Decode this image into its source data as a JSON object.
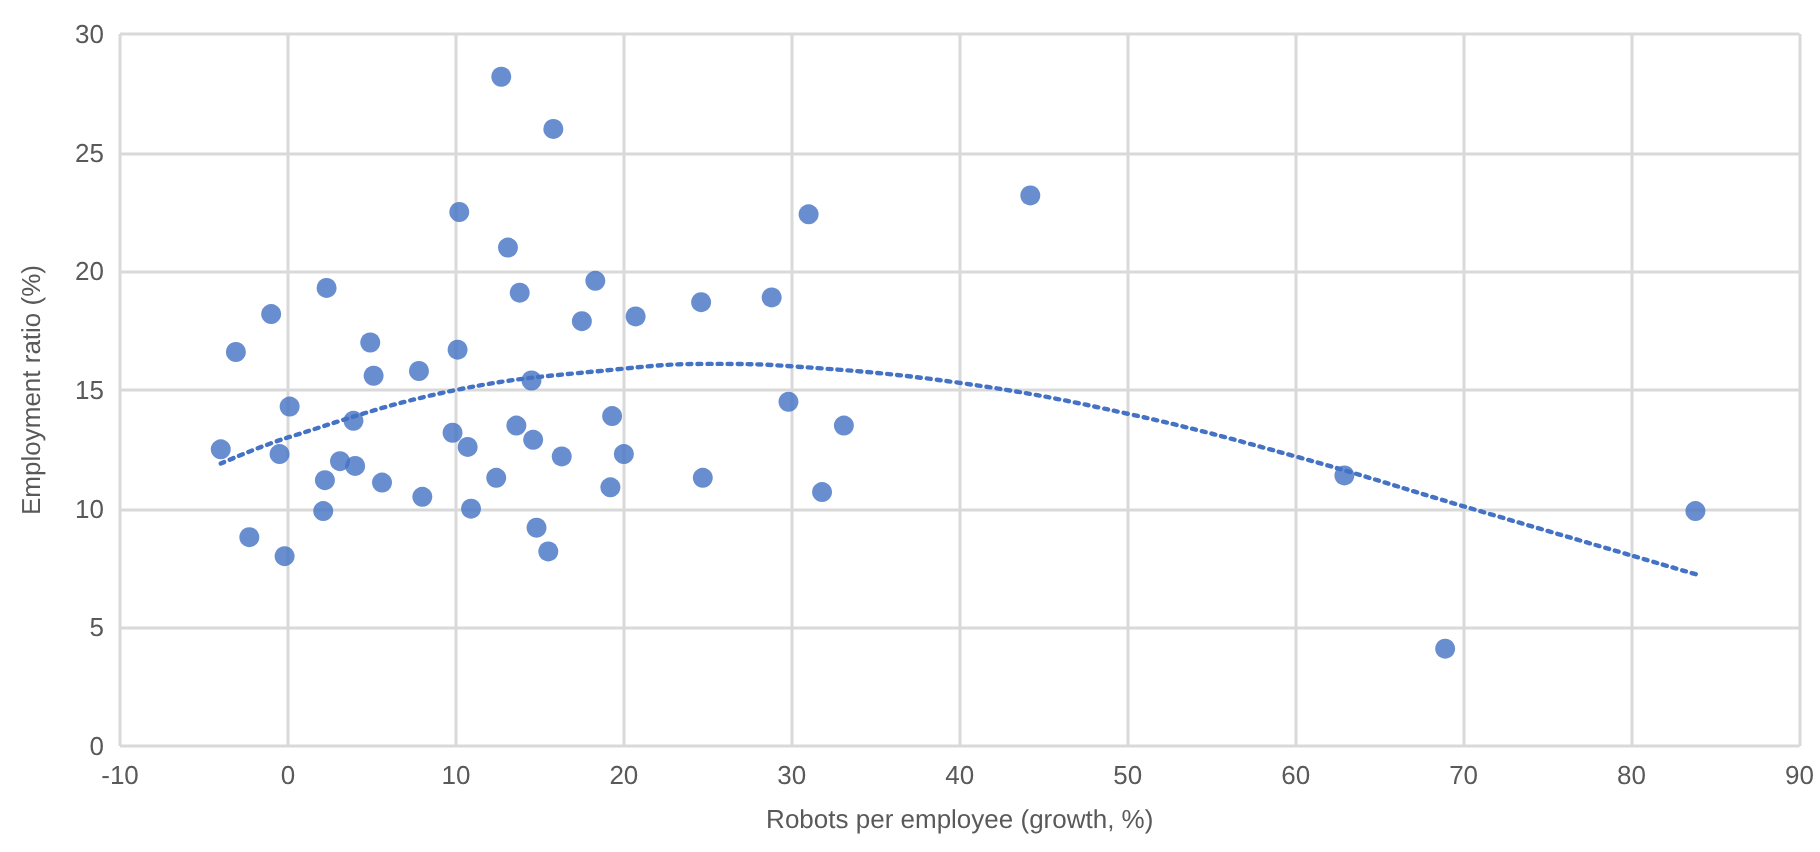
{
  "chart_data": {
    "type": "scatter",
    "xlabel": "Robots per employee (growth, %)",
    "ylabel": "Employment ratio (%)",
    "xlim": [
      -10,
      90
    ],
    "xticks": [
      -10,
      0,
      10,
      20,
      30,
      40,
      50,
      60,
      70,
      80,
      90
    ],
    "ylim": [
      0,
      30
    ],
    "yticks": [
      0,
      5,
      10,
      15,
      20,
      25,
      30
    ],
    "grid": true,
    "marker": "circle",
    "series": [
      {
        "color": "#4472c4",
        "x": [
          -4,
          -3.1,
          -2.3,
          -1.0,
          -0.5,
          -0.2,
          0.1,
          2.1,
          2.2,
          2.3,
          3.1,
          3.9,
          4.0,
          4.9,
          5.1,
          5.6,
          7.8,
          8.0,
          9.8,
          10.2,
          10.1,
          10.7,
          10.9,
          12.4,
          12.7,
          13.1,
          13.6,
          13.8,
          14.5,
          14.6,
          14.8,
          15.5,
          15.8,
          16.3,
          17.5,
          18.3,
          19.2,
          19.3,
          20.0,
          20.7,
          24.6,
          24.7,
          28.8,
          29.8,
          31.0,
          31.8,
          33.1,
          44.2,
          62.9,
          68.9,
          83.8
        ],
        "values": [
          12.5,
          16.6,
          8.8,
          18.2,
          12.3,
          8.0,
          14.3,
          9.9,
          11.2,
          19.3,
          12.0,
          13.7,
          11.8,
          17.0,
          15.6,
          11.1,
          15.8,
          10.5,
          13.2,
          22.5,
          16.7,
          12.6,
          10.0,
          11.3,
          28.2,
          21.0,
          13.5,
          19.1,
          15.4,
          12.9,
          9.2,
          8.2,
          26.0,
          12.2,
          17.9,
          19.6,
          10.9,
          13.9,
          12.3,
          18.1,
          18.7,
          11.3,
          18.9,
          14.5,
          22.4,
          10.7,
          13.5,
          23.2,
          11.4,
          4.1,
          9.9
        ]
      },
      {
        "type": "line",
        "color": "#4472c4",
        "line_style": "dotted",
        "marker": "none",
        "x": [
          -4,
          0,
          10,
          20,
          25,
          30,
          40,
          50,
          60,
          70,
          84
        ],
        "values": [
          11.9,
          13.0,
          15.0,
          15.9,
          16.1,
          16.0,
          15.3,
          14.0,
          12.2,
          10.1,
          7.2
        ]
      }
    ]
  }
}
